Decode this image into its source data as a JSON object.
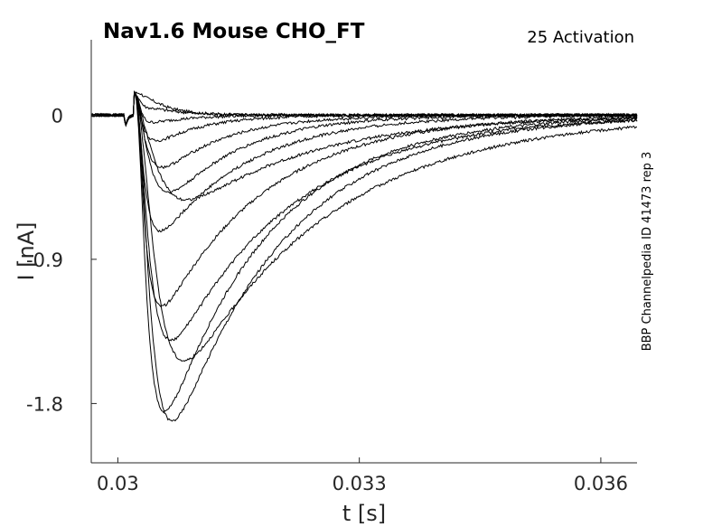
{
  "chart_data": {
    "type": "line",
    "title": "Nav1.6  Mouse  CHO_FT",
    "annotation": "25  Activation",
    "side_note": "BBP Channelpedia ID 41473 rep 3",
    "xlabel": "t [s]",
    "ylabel": "I [nA]",
    "xlim": [
      0.02967,
      0.03645
    ],
    "ylim": [
      -2.17,
      0.47
    ],
    "x_ticks": [
      0.03,
      0.033,
      0.036
    ],
    "x_tick_labels": [
      "0.03",
      "0.033",
      "0.036"
    ],
    "y_ticks": [
      0,
      -0.9,
      -1.8
    ],
    "y_tick_labels": [
      "0",
      "-0.9",
      "-1.8"
    ],
    "grid": false,
    "trace_color": "#000000",
    "trace_model": {
      "t_start": 0.02967,
      "t_end": 0.03645,
      "t_onset": 0.0302,
      "t_step": 0.0301
    },
    "series": [
      {
        "values_desc": "trace",
        "peak_time": 0.03032,
        "peak_current": 0.12,
        "decay_tau": 0.0003
      },
      {
        "values_desc": "trace",
        "peak_time": 0.03034,
        "peak_current": 0.05,
        "decay_tau": 0.0004
      },
      {
        "values_desc": "trace",
        "peak_time": 0.03036,
        "peak_current": -0.05,
        "decay_tau": 0.0005
      },
      {
        "values_desc": "trace",
        "peak_time": 0.0304,
        "peak_current": -0.18,
        "decay_tau": 0.0006
      },
      {
        "values_desc": "trace",
        "peak_time": 0.03045,
        "peak_current": -0.36,
        "decay_tau": 0.0008
      },
      {
        "values_desc": "trace",
        "peak_time": 0.03052,
        "peak_current": -0.55,
        "decay_tau": 0.0009
      },
      {
        "values_desc": "trace",
        "peak_time": 0.03065,
        "peak_current": -0.57,
        "decay_tau": 0.0016
      },
      {
        "values_desc": "trace",
        "peak_time": 0.0304,
        "peak_current": -0.71,
        "decay_tau": 0.0011
      },
      {
        "values_desc": "trace",
        "peak_time": 0.0304,
        "peak_current": -1.14,
        "decay_tau": 0.0013
      },
      {
        "values_desc": "trace",
        "peak_time": 0.03048,
        "peak_current": -1.39,
        "decay_tau": 0.0015
      },
      {
        "values_desc": "trace",
        "peak_time": 0.0306,
        "peak_current": -1.57,
        "decay_tau": 0.0018
      },
      {
        "values_desc": "trace",
        "peak_time": 0.03043,
        "peak_current": -1.81,
        "decay_tau": 0.0013
      },
      {
        "values_desc": "trace",
        "peak_time": 0.0305,
        "peak_current": -1.94,
        "decay_tau": 0.0014
      }
    ]
  }
}
